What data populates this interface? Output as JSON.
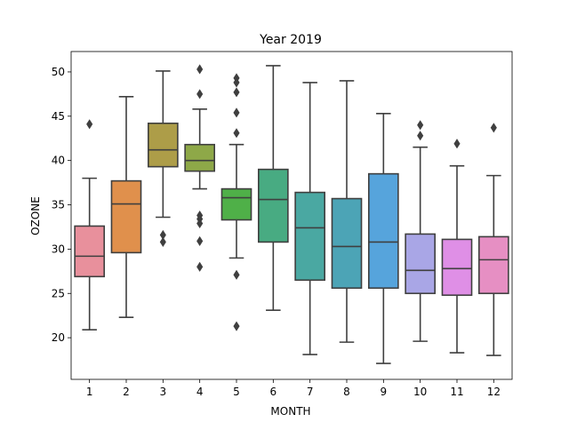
{
  "chart_data": {
    "type": "box",
    "title": "Year 2019",
    "xlabel": "MONTH",
    "ylabel": "OZONE",
    "ylim": [
      15.3,
      52.3
    ],
    "yticks": [
      20,
      25,
      30,
      35,
      40,
      45,
      50
    ],
    "grid": false,
    "legend": "none",
    "categories": [
      "1",
      "2",
      "3",
      "4",
      "5",
      "6",
      "7",
      "8",
      "9",
      "10",
      "11",
      "12"
    ],
    "boxes": [
      {
        "category": "1",
        "color": "#e8909c",
        "whisker_low": 20.9,
        "q1": 26.9,
        "median": 29.2,
        "q3": 32.6,
        "whisker_high": 38.0,
        "outliers": [
          44.1
        ]
      },
      {
        "category": "2",
        "color": "#e0904c",
        "whisker_low": 22.3,
        "q1": 29.6,
        "median": 35.1,
        "q3": 37.7,
        "whisker_high": 47.2,
        "outliers": []
      },
      {
        "category": "3",
        "color": "#ad9d48",
        "whisker_low": 33.6,
        "q1": 39.3,
        "median": 41.2,
        "q3": 44.2,
        "whisker_high": 50.1,
        "outliers": [
          31.6,
          30.8
        ]
      },
      {
        "category": "4",
        "color": "#8ea848",
        "whisker_low": 36.8,
        "q1": 38.8,
        "median": 40.0,
        "q3": 41.8,
        "whisker_high": 45.8,
        "outliers": [
          50.3,
          47.5,
          33.8,
          33.4,
          32.9,
          30.9,
          28.0
        ]
      },
      {
        "category": "5",
        "color": "#4fb048",
        "whisker_low": 29.0,
        "q1": 33.3,
        "median": 35.8,
        "q3": 36.8,
        "whisker_high": 41.8,
        "outliers": [
          49.3,
          48.8,
          47.7,
          45.4,
          43.1,
          27.1,
          21.3
        ]
      },
      {
        "category": "6",
        "color": "#48ab82",
        "whisker_low": 23.1,
        "q1": 30.8,
        "median": 35.6,
        "q3": 39.0,
        "whisker_high": 50.7,
        "outliers": []
      },
      {
        "category": "7",
        "color": "#4aa8a2",
        "whisker_low": 18.1,
        "q1": 26.5,
        "median": 32.4,
        "q3": 36.4,
        "whisker_high": 48.8,
        "outliers": []
      },
      {
        "category": "8",
        "color": "#4ca4b6",
        "whisker_low": 19.5,
        "q1": 25.6,
        "median": 30.3,
        "q3": 35.7,
        "whisker_high": 49.0,
        "outliers": []
      },
      {
        "category": "9",
        "color": "#56a4dc",
        "whisker_low": 17.1,
        "q1": 25.6,
        "median": 30.8,
        "q3": 38.5,
        "whisker_high": 45.3,
        "outliers": []
      },
      {
        "category": "10",
        "color": "#a9a6e6",
        "whisker_low": 19.6,
        "q1": 25.0,
        "median": 27.6,
        "q3": 31.7,
        "whisker_high": 41.5,
        "outliers": [
          44.0,
          42.8
        ]
      },
      {
        "category": "11",
        "color": "#df8fe6",
        "whisker_low": 18.3,
        "q1": 24.8,
        "median": 27.8,
        "q3": 31.1,
        "whisker_high": 39.4,
        "outliers": [
          41.9
        ]
      },
      {
        "category": "12",
        "color": "#e68fc3",
        "whisker_low": 18.0,
        "q1": 25.0,
        "median": 28.8,
        "q3": 31.4,
        "whisker_high": 38.3,
        "outliers": [
          43.7
        ]
      }
    ],
    "line_color": "#3f3f3f"
  }
}
